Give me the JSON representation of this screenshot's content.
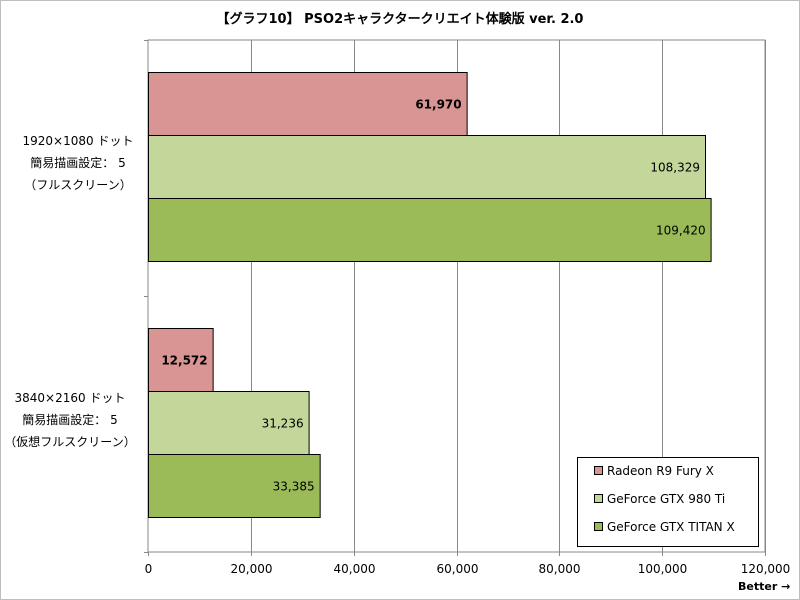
{
  "title": "【グラフ10】 PSO2キャラクタークリエイト体験版 ver. 2.0",
  "better_label": "Better →",
  "chart_data": {
    "type": "bar",
    "orientation": "horizontal",
    "categories": [
      {
        "lines": [
          "1920×1080 ドット",
          "簡易描画設定： 5",
          "（フルスクリーン）"
        ]
      },
      {
        "lines": [
          "3840×2160 ドット",
          "簡易描画設定： 5",
          "（仮想フルスクリーン）"
        ]
      }
    ],
    "series": [
      {
        "name": "Radeon R9 Fury X",
        "color": "#d99594",
        "label_bold": true,
        "values": [
          61970,
          12572
        ],
        "labels": [
          "61,970",
          "12,572"
        ]
      },
      {
        "name": "GeForce GTX 980 Ti",
        "color": "#c4d79b",
        "label_bold": false,
        "values": [
          108329,
          31236
        ],
        "labels": [
          "108,329",
          "31,236"
        ]
      },
      {
        "name": "GeForce GTX TITAN X",
        "color": "#9bbb59",
        "label_bold": false,
        "values": [
          109420,
          33385
        ],
        "labels": [
          "109,420",
          "33,385"
        ]
      }
    ],
    "xlim": [
      0,
      120000
    ],
    "xticks": [
      0,
      20000,
      40000,
      60000,
      80000,
      100000,
      120000
    ],
    "xtick_labels": [
      "0",
      "20,000",
      "40,000",
      "60,000",
      "80,000",
      "100,000",
      "120,000"
    ],
    "grid": true,
    "legend_position": "bottom-right"
  }
}
